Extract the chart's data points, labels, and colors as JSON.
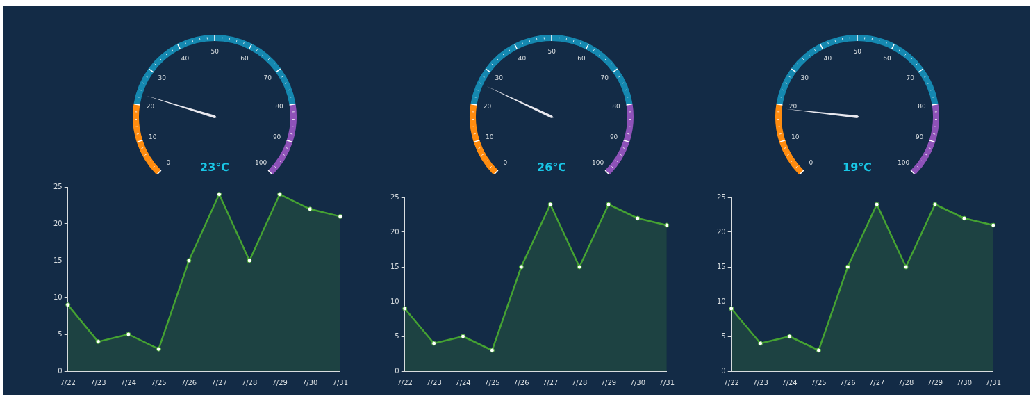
{
  "chart_data": [
    {
      "type": "other",
      "values": [
        23
      ],
      "value_labels": [
        "23℃"
      ],
      "annotations": [
        "0",
        "10",
        "20",
        "30",
        "40",
        "50",
        "60",
        "70",
        "80",
        "90",
        "100"
      ]
    },
    {
      "type": "other",
      "values": [
        26
      ],
      "value_labels": [
        "26℃"
      ],
      "annotations": [
        "0",
        "10",
        "20",
        "30",
        "40",
        "50",
        "60",
        "70",
        "80",
        "90",
        "100"
      ]
    },
    {
      "type": "other",
      "values": [
        19
      ],
      "value_labels": [
        "19℃"
      ],
      "annotations": [
        "0",
        "10",
        "20",
        "30",
        "40",
        "50",
        "60",
        "70",
        "80",
        "90",
        "100"
      ]
    },
    {
      "type": "area",
      "categories": [
        "7/22",
        "7/23",
        "7/24",
        "7/25",
        "7/26",
        "7/27",
        "7/28",
        "7/29",
        "7/30",
        "7/31"
      ],
      "values": [
        9,
        4,
        5,
        3,
        15,
        24,
        15,
        24,
        22,
        21
      ],
      "color": "#45a232",
      "ylim": [
        0,
        25
      ],
      "yticks": [
        0,
        5,
        10,
        15,
        20,
        25
      ],
      "marker": "circle",
      "grid": false
    },
    {
      "type": "area",
      "categories": [
        "7/22",
        "7/23",
        "7/24",
        "7/25",
        "7/26",
        "7/27",
        "7/28",
        "7/29",
        "7/30",
        "7/31"
      ],
      "values": [
        9,
        4,
        5,
        3,
        15,
        24,
        15,
        24,
        22,
        21
      ],
      "color": "#45a232",
      "ylim": [
        0,
        25
      ],
      "yticks": [
        0,
        5,
        10,
        15,
        20,
        25
      ],
      "marker": "circle",
      "grid": false
    },
    {
      "type": "area",
      "categories": [
        "7/22",
        "7/23",
        "7/24",
        "7/25",
        "7/26",
        "7/27",
        "7/28",
        "7/29",
        "7/30",
        "7/31"
      ],
      "values": [
        9,
        4,
        5,
        3,
        15,
        24,
        15,
        24,
        22,
        21
      ],
      "color": "#45a232",
      "ylim": [
        0,
        25
      ],
      "yticks": [
        0,
        5,
        10,
        15,
        20,
        25
      ],
      "marker": "circle",
      "grid": false
    }
  ]
}
